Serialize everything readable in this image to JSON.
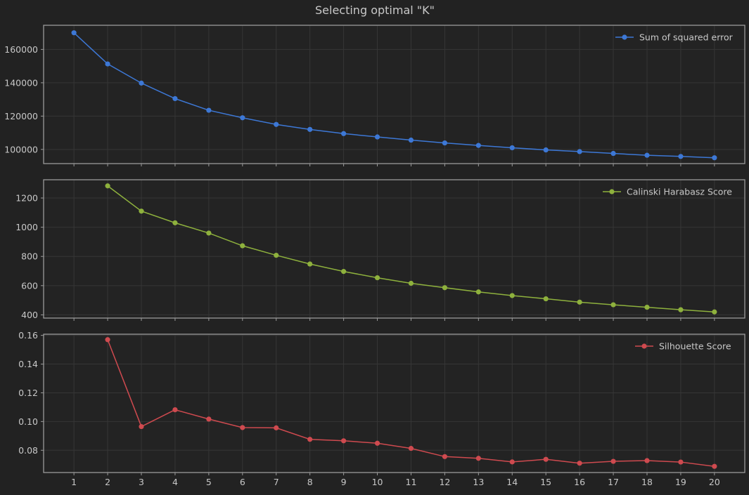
{
  "title": "Selecting optimal \"K\"",
  "chart_data": [
    {
      "type": "line",
      "x": [
        1,
        2,
        3,
        4,
        5,
        6,
        7,
        8,
        9,
        10,
        11,
        12,
        13,
        14,
        15,
        16,
        17,
        18,
        19,
        20
      ],
      "series": [
        {
          "name": "Sum of squared error",
          "values": [
            170000,
            151300,
            139800,
            130500,
            123500,
            119000,
            115000,
            112000,
            109500,
            107500,
            105600,
            103900,
            102400,
            101000,
            99700,
            98700,
            97600,
            96500,
            95800,
            95000
          ]
        }
      ],
      "yticks": [
        100000,
        120000,
        140000,
        160000
      ],
      "ylim": [
        91500,
        174500
      ],
      "xlim": [
        0.1,
        20.9
      ],
      "color": "#3d78d6",
      "legend": "top-right",
      "grid": true
    },
    {
      "type": "line",
      "x": [
        2,
        3,
        4,
        5,
        6,
        7,
        8,
        9,
        10,
        11,
        12,
        13,
        14,
        15,
        16,
        17,
        18,
        19,
        20
      ],
      "series": [
        {
          "name": "Calinski Harabasz Score",
          "values": [
            1283,
            1110,
            1030,
            960,
            873,
            808,
            748,
            697,
            654,
            616,
            586,
            557,
            532,
            510,
            487,
            469,
            452,
            435,
            420
          ]
        }
      ],
      "yticks": [
        400,
        600,
        800,
        1000,
        1200
      ],
      "ylim": [
        378,
        1325
      ],
      "xlim": [
        0.1,
        20.9
      ],
      "color": "#8eb13d",
      "legend": "top-right",
      "grid": true
    },
    {
      "type": "line",
      "x": [
        2,
        3,
        4,
        5,
        6,
        7,
        8,
        9,
        10,
        11,
        12,
        13,
        14,
        15,
        16,
        17,
        18,
        19,
        20
      ],
      "series": [
        {
          "name": "Silhouette Score",
          "values": [
            0.157,
            0.0965,
            0.1082,
            0.1017,
            0.0958,
            0.0956,
            0.0876,
            0.0866,
            0.0849,
            0.0813,
            0.0756,
            0.0744,
            0.0719,
            0.0737,
            0.071,
            0.0723,
            0.0728,
            0.0718,
            0.0688
          ]
        }
      ],
      "yticks": [
        0.08,
        0.1,
        0.12,
        0.14,
        0.16
      ],
      "ylim": [
        0.0645,
        0.1608
      ],
      "xlim": [
        0.1,
        20.9
      ],
      "color": "#cf4a4f",
      "legend": "top-right",
      "grid": true
    }
  ],
  "xtick_labels": [
    "1",
    "2",
    "3",
    "4",
    "5",
    "6",
    "7",
    "8",
    "9",
    "10",
    "11",
    "12",
    "13",
    "14",
    "15",
    "16",
    "17",
    "18",
    "19",
    "20"
  ],
  "ytick_labels": [
    [
      "100000",
      "120000",
      "140000",
      "160000"
    ],
    [
      "400",
      "600",
      "800",
      "1000",
      "1200"
    ],
    [
      "0.08",
      "0.10",
      "0.12",
      "0.14",
      "0.16"
    ]
  ]
}
